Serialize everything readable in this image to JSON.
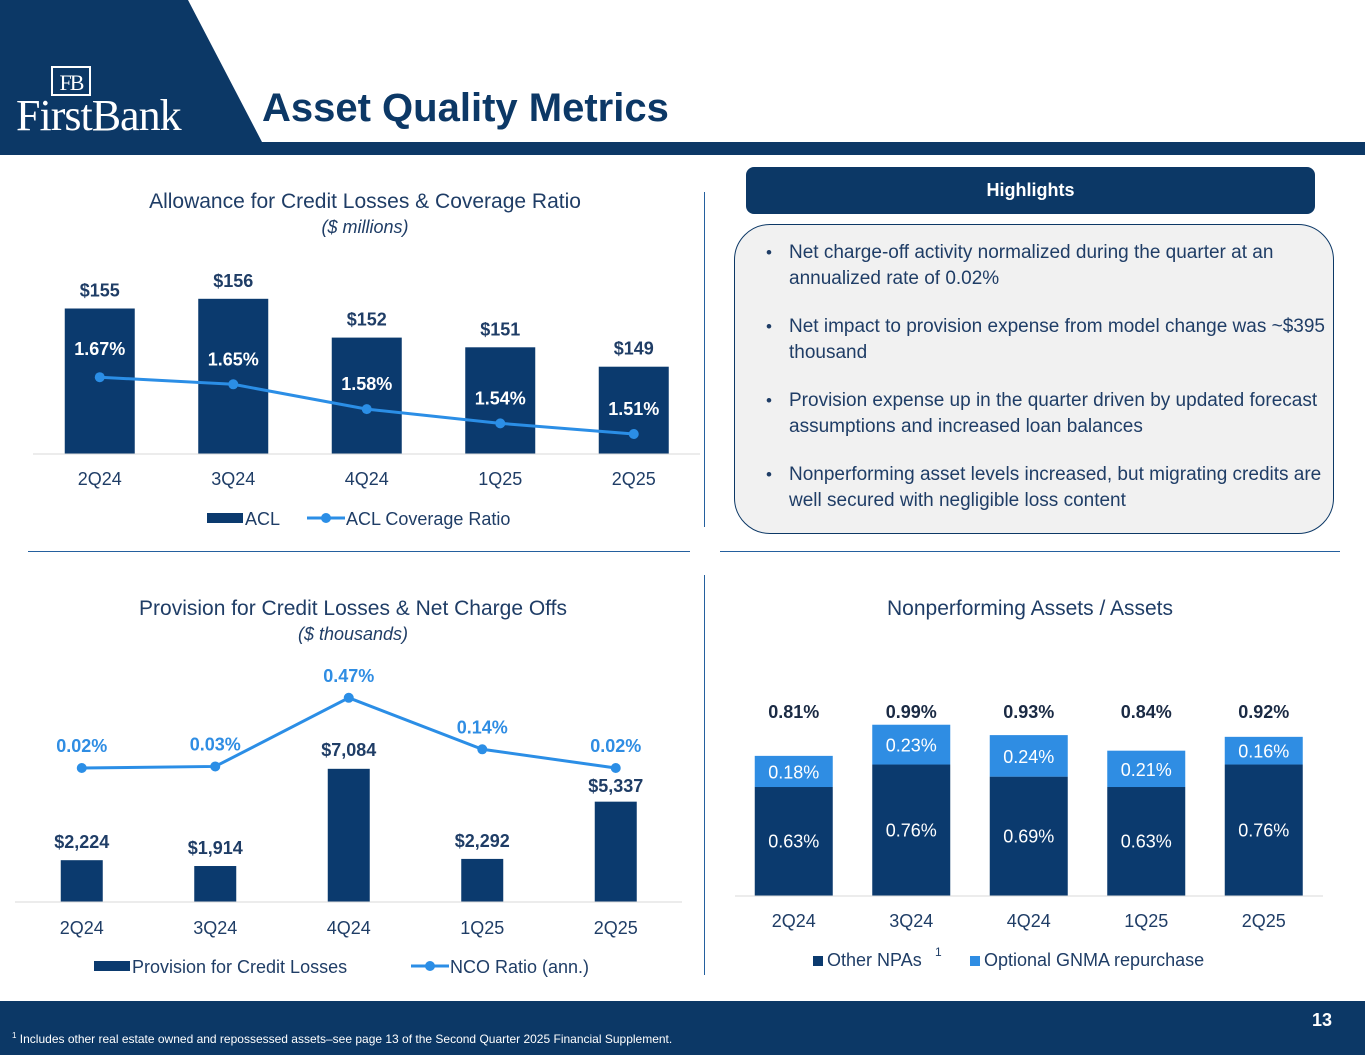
{
  "header": {
    "title": "Asset Quality Metrics",
    "logo_mark": "FB",
    "logo_text": "FirstBank"
  },
  "colors": {
    "navy": "#0c3866",
    "bar": "#0b3a6e",
    "line": "#2b8ee6",
    "light": "#2f8de3",
    "text": "#1f3d66"
  },
  "acl_chart": {
    "title": "Allowance for Credit Losses & Coverage Ratio",
    "subtitle": "($ millions)",
    "chart_data": {
      "type": "bar",
      "categories": [
        "2Q24",
        "3Q24",
        "4Q24",
        "1Q25",
        "2Q25"
      ],
      "series": [
        {
          "name": "ACL",
          "values": [
            155,
            156,
            152,
            151,
            149
          ],
          "labels": [
            "$155",
            "$156",
            "$152",
            "$151",
            "$149"
          ]
        },
        {
          "name": "ACL Coverage Ratio",
          "type": "line",
          "values": [
            1.67,
            1.65,
            1.58,
            1.54,
            1.51
          ],
          "labels": [
            "1.67%",
            "1.65%",
            "1.58%",
            "1.54%",
            "1.51%"
          ]
        }
      ],
      "legend": [
        "ACL",
        "ACL Coverage Ratio"
      ]
    }
  },
  "provision_chart": {
    "title": "Provision for Credit Losses & Net Charge Offs",
    "subtitle": "($ thousands)",
    "chart_data": {
      "type": "bar",
      "categories": [
        "2Q24",
        "3Q24",
        "4Q24",
        "1Q25",
        "2Q25"
      ],
      "series": [
        {
          "name": "Provision for Credit Losses",
          "values": [
            2224,
            1914,
            7084,
            2292,
            5337
          ],
          "labels": [
            "$2,224",
            "$1,914",
            "$7,084",
            "$2,292",
            "$5,337"
          ]
        },
        {
          "name": "NCO Ratio (ann.)",
          "type": "line",
          "values": [
            0.02,
            0.03,
            0.47,
            0.14,
            0.02
          ],
          "labels": [
            "0.02%",
            "0.03%",
            "0.47%",
            "0.14%",
            "0.02%"
          ]
        }
      ],
      "legend": [
        "Provision for Credit Losses",
        "NCO Ratio (ann.)"
      ]
    }
  },
  "npa_chart": {
    "title": "Nonperforming Assets / Assets",
    "chart_data": {
      "type": "bar",
      "stacked": true,
      "categories": [
        "2Q24",
        "3Q24",
        "4Q24",
        "1Q25",
        "2Q25"
      ],
      "totals": [
        0.81,
        0.99,
        0.93,
        0.84,
        0.92
      ],
      "total_labels": [
        "0.81%",
        "0.99%",
        "0.93%",
        "0.84%",
        "0.92%"
      ],
      "series": [
        {
          "name": "Other NPAs",
          "values": [
            0.63,
            0.76,
            0.69,
            0.63,
            0.76
          ],
          "labels": [
            "0.63%",
            "0.76%",
            "0.69%",
            "0.63%",
            "0.76%"
          ]
        },
        {
          "name": "Optional GNMA repurchase",
          "values": [
            0.18,
            0.23,
            0.24,
            0.21,
            0.16
          ],
          "labels": [
            "0.18%",
            "0.23%",
            "0.24%",
            "0.21%",
            "0.16%"
          ]
        }
      ],
      "legend": [
        "Other NPAs",
        "Optional GNMA repurchase"
      ],
      "legend_sup": "1"
    }
  },
  "highlights": {
    "heading": "Highlights",
    "bullet_char": "•",
    "items": [
      "Net charge-off activity normalized during the quarter at an annualized rate of 0.02%",
      "Net impact to provision expense from model change was ~$395 thousand",
      "Provision expense up in the quarter driven by updated forecast assumptions and increased loan balances",
      "Nonperforming asset levels increased, but migrating credits are well secured with negligible loss content"
    ]
  },
  "footer": {
    "footnote_sup": "1",
    "footnote": "Includes other real estate owned and repossessed assets–see page 13 of the Second Quarter 2025 Financial Supplement.",
    "page_number": "13"
  }
}
